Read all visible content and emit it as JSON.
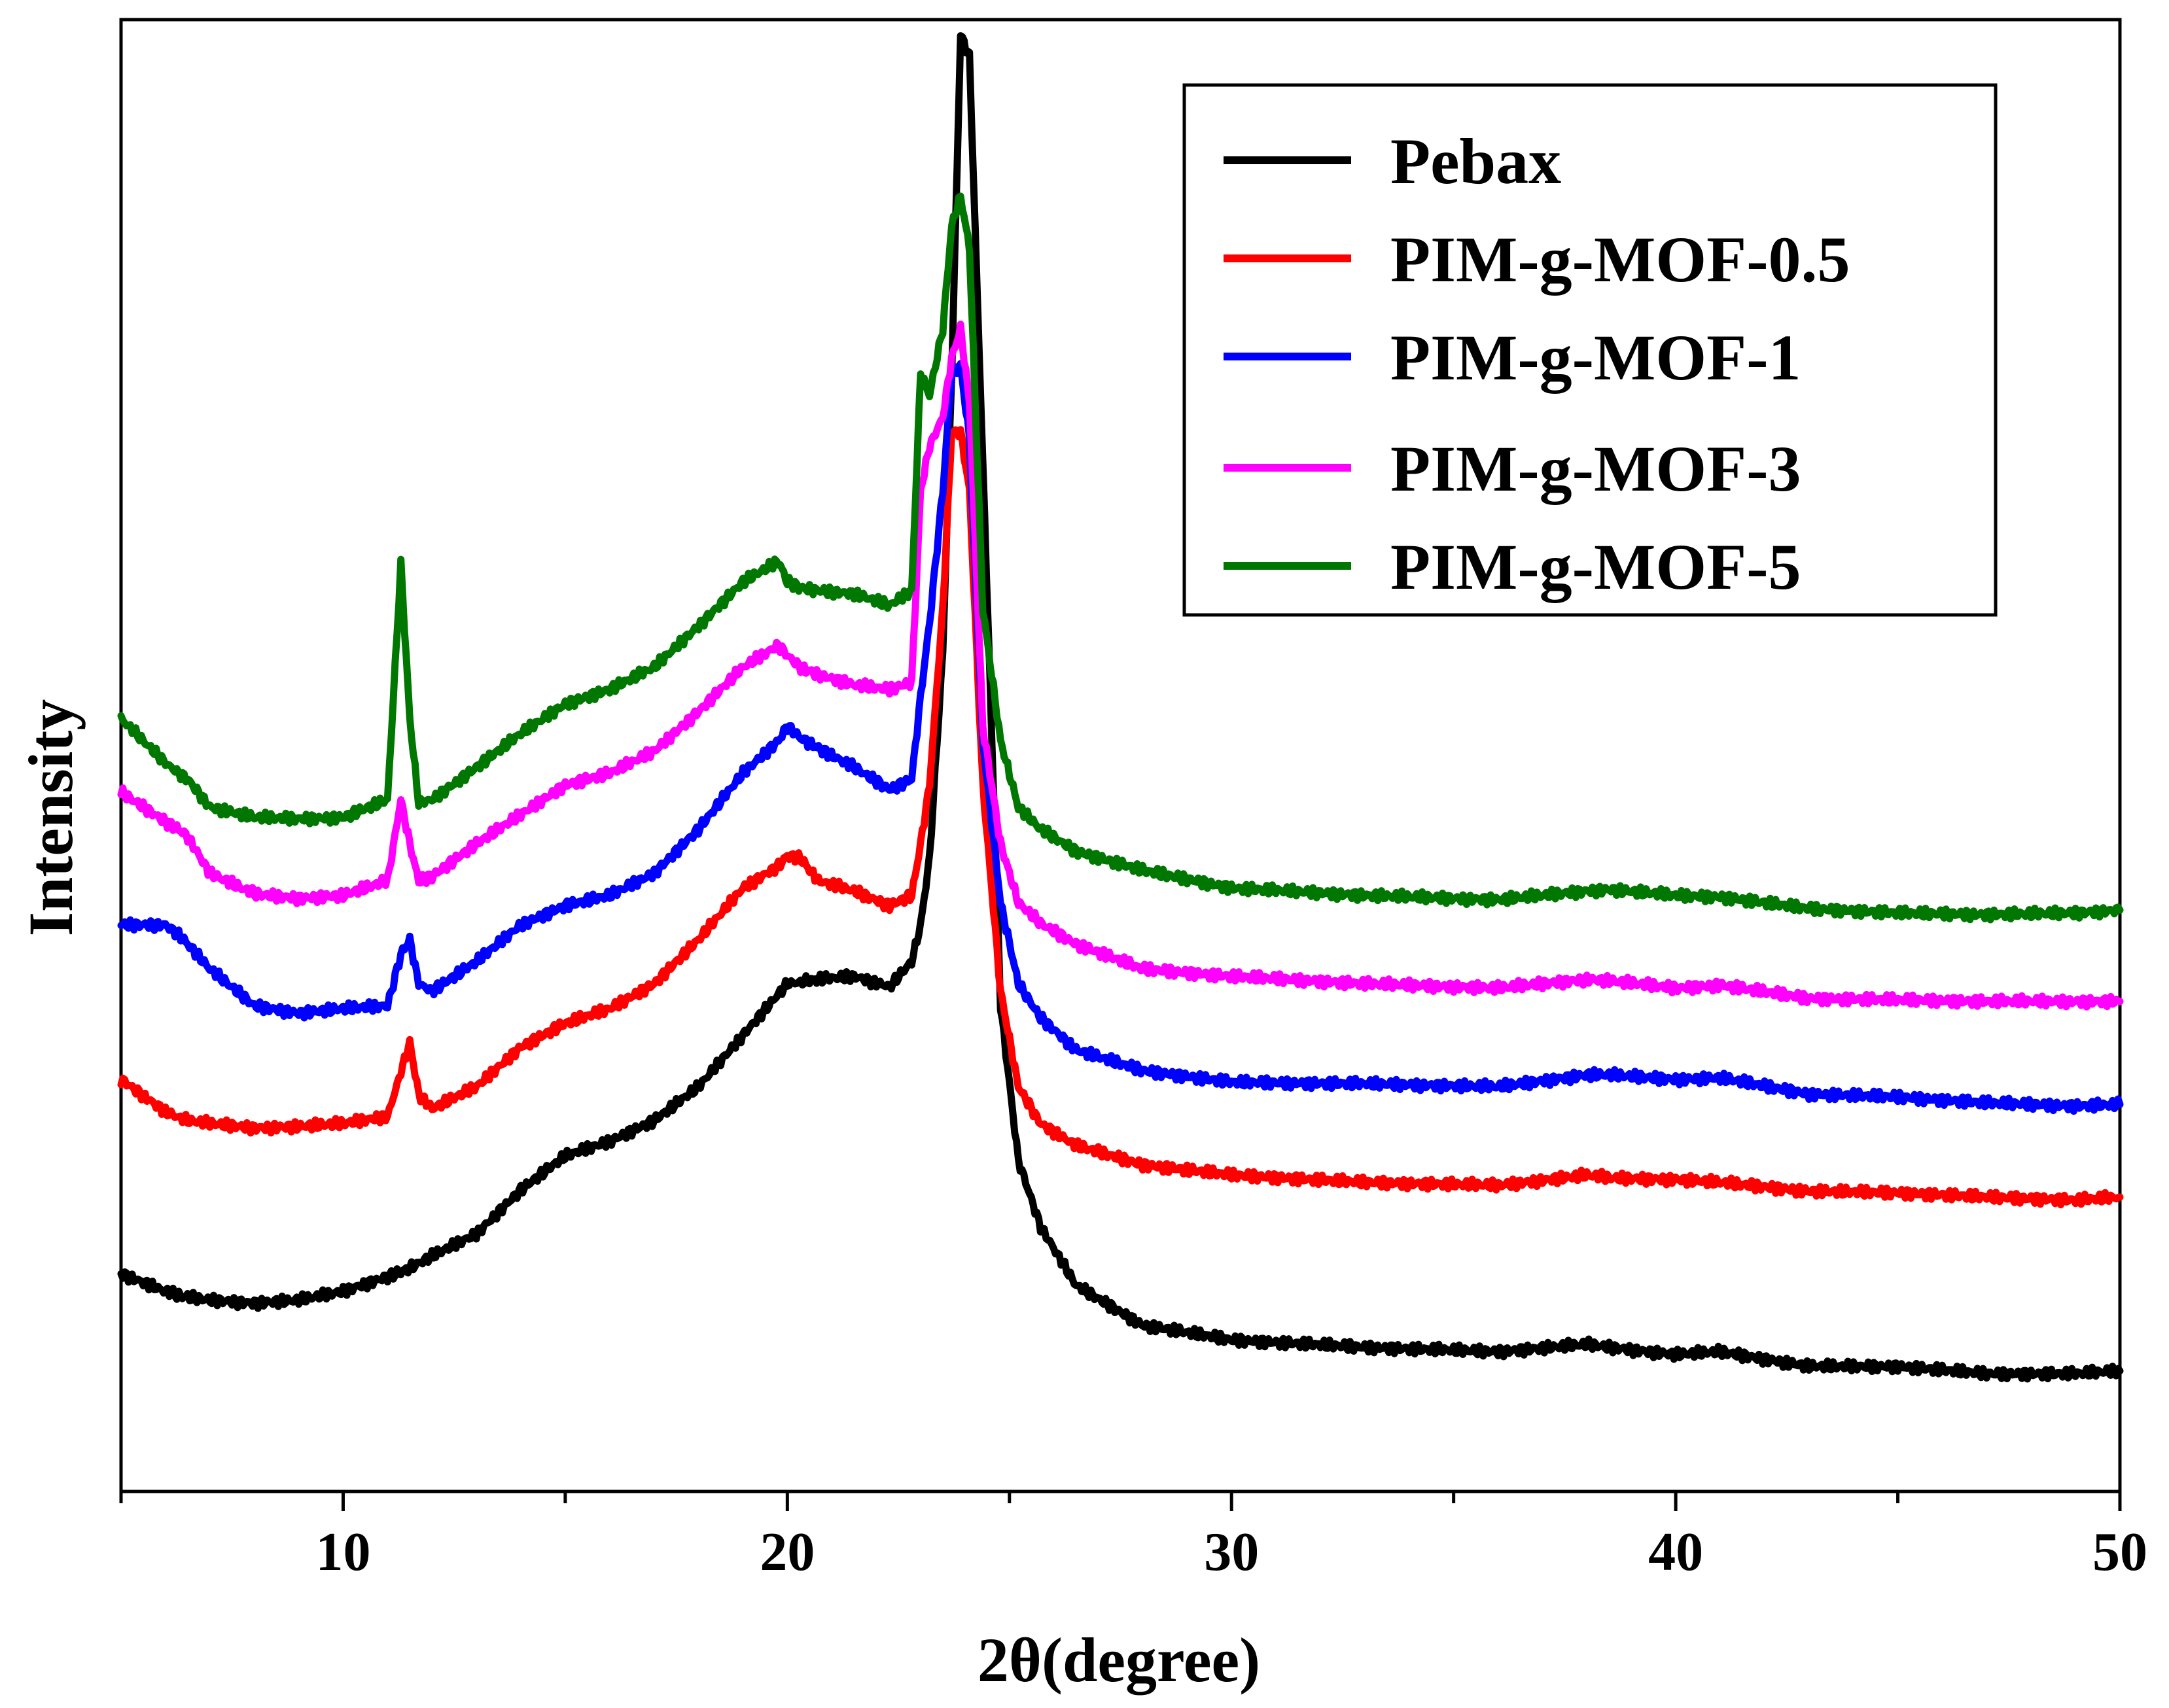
{
  "chart_data": {
    "type": "line",
    "title": "",
    "xlabel": "2θ(degree)",
    "ylabel": "Intensity",
    "xlim": [
      5,
      50
    ],
    "ylim": [
      0,
      1000
    ],
    "x_ticks": [
      10,
      20,
      30,
      40,
      50
    ],
    "x_tick_labels": [
      "10",
      "20",
      "30",
      "40",
      "50"
    ],
    "y_ticks_shown": false,
    "grid": false,
    "legend_position": "top-right",
    "x": [
      5,
      6,
      6.3,
      6.5,
      7,
      8,
      9,
      10,
      11,
      11.3,
      11.5,
      11.7,
      12,
      13,
      14,
      15,
      16,
      17,
      18,
      19,
      19.8,
      20,
      20.3,
      20.7,
      21.5,
      22.3,
      22.8,
      23,
      23.2,
      23.5,
      23.7,
      23.9,
      24.1,
      24.4,
      24.8,
      25.2,
      25.7,
      26.5,
      28,
      30,
      33,
      36,
      38,
      38.5,
      40,
      41,
      43,
      45,
      47,
      49,
      50
    ],
    "series": [
      {
        "name": "Pebax",
        "color": "#000000",
        "values": [
          148,
          136,
          133,
          132,
          130,
          128,
          130,
          136,
          146,
          149,
          152,
          155,
          160,
          175,
          205,
          228,
          238,
          252,
          275,
          310,
          338,
          345,
          346,
          348,
          350,
          343,
          360,
          385,
          430,
          570,
          760,
          990,
          975,
          700,
          330,
          225,
          180,
          140,
          113,
          103,
          98,
          95,
          100,
          98,
          93,
          95,
          85,
          85,
          80,
          80,
          82
        ]
      },
      {
        "name": "PIM-g-MOF-0.5",
        "color": "#ff0000",
        "values": [
          280,
          258,
          254,
          252,
          250,
          247,
          248,
          250,
          255,
          285,
          305,
          270,
          260,
          275,
          302,
          318,
          328,
          345,
          375,
          410,
          425,
          432,
          430,
          415,
          408,
          398,
          405,
          440,
          480,
          600,
          720,
          720,
          680,
          480,
          340,
          275,
          250,
          235,
          222,
          215,
          210,
          208,
          215,
          213,
          212,
          210,
          204,
          203,
          200,
          198,
          200
        ]
      },
      {
        "name": "PIM-g-MOF-1",
        "color": "#0000ff",
        "values": [
          385,
          385,
          378,
          372,
          355,
          330,
          325,
          328,
          330,
          365,
          375,
          345,
          340,
          360,
          385,
          398,
          405,
          420,
          450,
          488,
          510,
          520,
          512,
          505,
          492,
          477,
          484,
          540,
          590,
          680,
          760,
          765,
          715,
          510,
          400,
          345,
          322,
          300,
          286,
          278,
          277,
          275,
          283,
          283,
          280,
          281,
          270,
          268,
          264,
          262,
          263
        ]
      },
      {
        "name": "PIM-g-MOF-3",
        "color": "#ff00ff",
        "values": [
          475,
          455,
          450,
          445,
          420,
          406,
          403,
          405,
          415,
          470,
          440,
          415,
          418,
          440,
          460,
          480,
          488,
          503,
          530,
          560,
          575,
          568,
          560,
          555,
          548,
          545,
          550,
          680,
          710,
          730,
          770,
          790,
          740,
          520,
          440,
          400,
          386,
          372,
          355,
          350,
          345,
          342,
          348,
          347,
          342,
          344,
          335,
          334,
          333,
          333,
          333
        ]
      },
      {
        "name": "PIM-g-MOF-5",
        "color": "#007700",
        "values": [
          525,
          495,
          488,
          484,
          465,
          458,
          457,
          458,
          470,
          630,
          525,
          468,
          470,
          492,
          515,
          535,
          545,
          560,
          588,
          618,
          632,
          618,
          614,
          612,
          610,
          602,
          612,
          760,
          745,
          790,
          860,
          880,
          845,
          600,
          510,
          465,
          450,
          435,
          422,
          410,
          405,
          402,
          408,
          409,
          405,
          404,
          396,
          393,
          392,
          393,
          395
        ]
      }
    ]
  }
}
